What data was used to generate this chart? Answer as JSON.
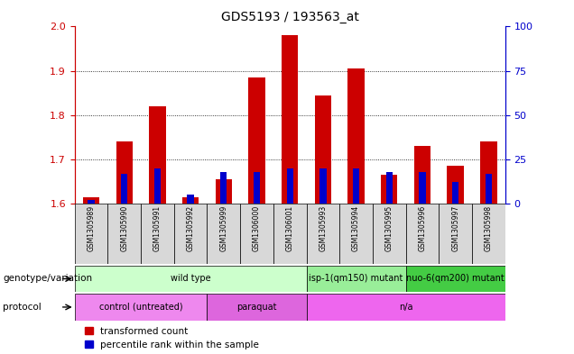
{
  "title": "GDS5193 / 193563_at",
  "samples": [
    "GSM1305989",
    "GSM1305990",
    "GSM1305991",
    "GSM1305992",
    "GSM1305999",
    "GSM1306000",
    "GSM1306001",
    "GSM1305993",
    "GSM1305994",
    "GSM1305995",
    "GSM1305996",
    "GSM1305997",
    "GSM1305998"
  ],
  "transformed_count": [
    1.615,
    1.74,
    1.82,
    1.615,
    1.655,
    1.885,
    1.98,
    1.845,
    1.905,
    1.665,
    1.73,
    1.685,
    1.74
  ],
  "percentile_rank": [
    2,
    17,
    20,
    5,
    18,
    18,
    20,
    20,
    20,
    18,
    18,
    12,
    17
  ],
  "baseline": 1.6,
  "ylim_left": [
    1.6,
    2.0
  ],
  "ylim_right": [
    0,
    100
  ],
  "yticks_left": [
    1.6,
    1.7,
    1.8,
    1.9,
    2.0
  ],
  "yticks_right": [
    0,
    25,
    50,
    75,
    100
  ],
  "left_axis_color": "#cc0000",
  "right_axis_color": "#0000cc",
  "bar_color_red": "#cc0000",
  "bar_color_blue": "#0000cc",
  "genotype_groups": [
    {
      "label": "wild type",
      "start": 0,
      "end": 6,
      "color": "#ccffcc"
    },
    {
      "label": "isp-1(qm150) mutant",
      "start": 7,
      "end": 9,
      "color": "#99ee99"
    },
    {
      "label": "nuo-6(qm200) mutant",
      "start": 10,
      "end": 12,
      "color": "#44cc44"
    }
  ],
  "protocol_groups": [
    {
      "label": "control (untreated)",
      "start": 0,
      "end": 3,
      "color": "#ee88ee"
    },
    {
      "label": "paraquat",
      "start": 4,
      "end": 6,
      "color": "#dd66dd"
    },
    {
      "label": "n/a",
      "start": 7,
      "end": 12,
      "color": "#ee66ee"
    }
  ],
  "bg_color": "#ffffff",
  "tick_label_area_color": "#d8d8d8",
  "bar_width": 0.5,
  "blue_bar_width": 0.2
}
